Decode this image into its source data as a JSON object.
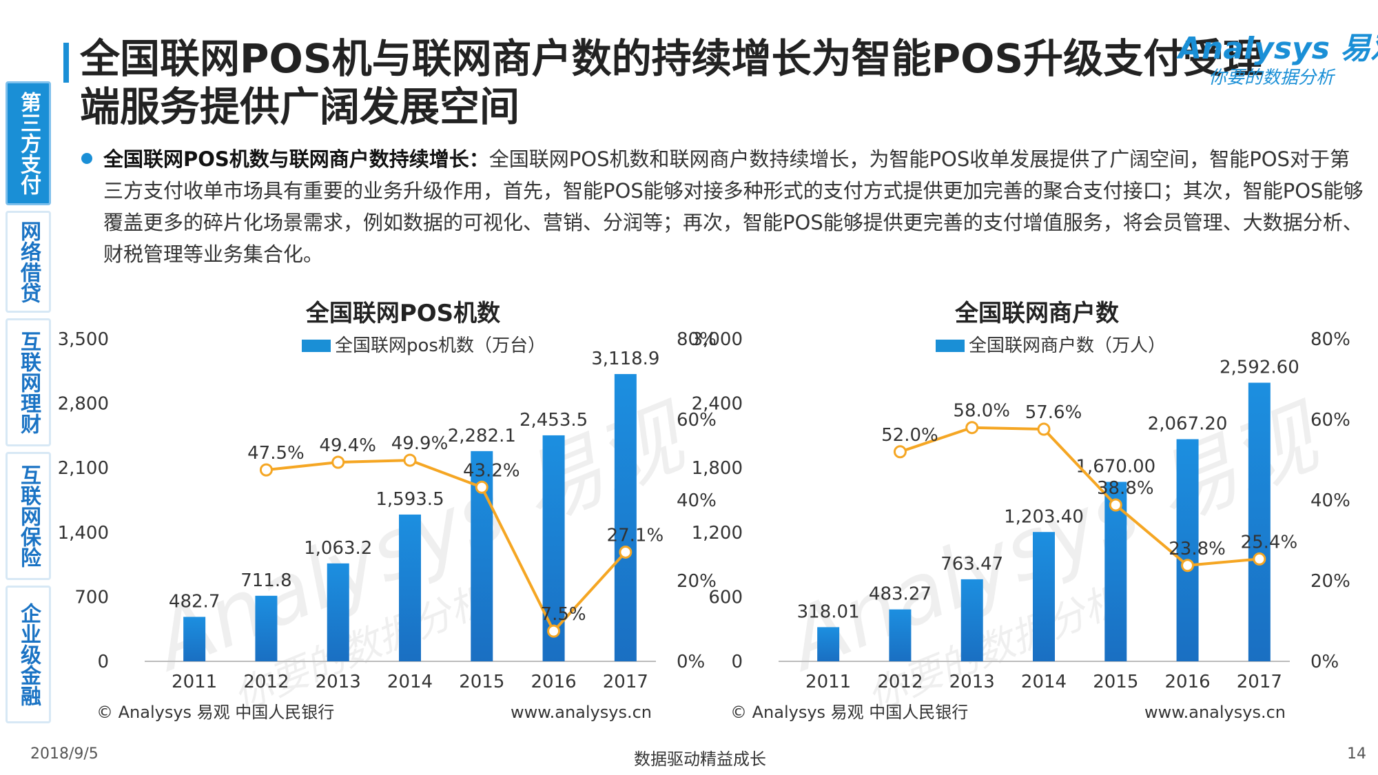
{
  "title": "全国联网POS机与联网商户数的持续增长为智能POS升级支付受理端服务提供广阔发展空间",
  "logo": {
    "brand": "Analysys 易观",
    "tagline": "你要的数据分析"
  },
  "sidebar": {
    "items": [
      {
        "label": "第三方支付",
        "active": true
      },
      {
        "label": "网络借贷",
        "active": false
      },
      {
        "label": "互联网理财",
        "active": false
      },
      {
        "label": "互联网保险",
        "active": false
      },
      {
        "label": "企业级金融",
        "active": false
      }
    ]
  },
  "description": {
    "heading": "全国联网POS机数与联网商户数持续增长：",
    "body": "全国联网POS机数和联网商户数持续增长，为智能POS收单发展提供了广阔空间，智能POS对于第三方支付收单市场具有重要的业务升级作用，首先，智能POS能够对接多种形式的支付方式提供更加完善的聚合支付接口；其次，智能POS能够覆盖更多的碎片化场景需求，例如数据的可视化、营销、分润等；再次，智能POS能够提供更完善的支付增值服务，将会员管理、大数据分析、财税管理等业务集合化。"
  },
  "chart_data": [
    {
      "type": "bar",
      "title": "全国联网POS机数",
      "categories": [
        "2011",
        "2012",
        "2013",
        "2014",
        "2015",
        "2016",
        "2017"
      ],
      "series": [
        {
          "name": "全国联网pos机数（万台）",
          "axis": "left",
          "values": [
            482.7,
            711.8,
            1063.2,
            1593.5,
            2282.1,
            2453.5,
            3118.9
          ],
          "labels": [
            "482.7",
            "711.8",
            "1,063.2",
            "1,593.5",
            "2,282.1",
            "2,453.5",
            "3,118.9"
          ],
          "color": "#1a8fd6"
        },
        {
          "axis": "right",
          "type": "line",
          "values": [
            null,
            47.5,
            49.4,
            49.9,
            43.2,
            7.5,
            27.1
          ],
          "labels": [
            "",
            "47.5%",
            "49.4%",
            "49.9%",
            "43.2%",
            "7.5%",
            "27.1%"
          ],
          "color": "#f5a623"
        }
      ],
      "ylim": [
        0,
        3500
      ],
      "yticks": [
        "0",
        "700",
        "1,400",
        "2,100",
        "2,800",
        "3,500"
      ],
      "ylim_right": [
        0,
        80
      ],
      "yticks_right": [
        "0%",
        "20%",
        "40%",
        "60%",
        "80%"
      ],
      "source": "© Analysys 易观 中国人民银行",
      "website": "www.analysys.cn",
      "watermark": "Analysys 易观",
      "watermark_sub": "你要的数据分析"
    },
    {
      "type": "bar",
      "title": "全国联网商户数",
      "categories": [
        "2011",
        "2012",
        "2013",
        "2014",
        "2015",
        "2016",
        "2017"
      ],
      "series": [
        {
          "name": "全国联网商户数（万人）",
          "axis": "left",
          "values": [
            318.01,
            483.27,
            763.47,
            1203.4,
            1670.0,
            2067.2,
            2592.6
          ],
          "labels": [
            "318.01",
            "483.27",
            "763.47",
            "1,203.40",
            "1,670.00",
            "2,067.20",
            "2,592.60"
          ],
          "color": "#1a8fd6"
        },
        {
          "axis": "right",
          "type": "line",
          "values": [
            null,
            52.0,
            58.0,
            57.6,
            38.8,
            23.8,
            25.4
          ],
          "labels": [
            "",
            "52.0%",
            "58.0%",
            "57.6%",
            "38.8%",
            "23.8%",
            "25.4%"
          ],
          "color": "#f5a623"
        }
      ],
      "ylim": [
        0,
        3000
      ],
      "yticks": [
        "0",
        "600",
        "1,200",
        "1,800",
        "2,400",
        "3,000"
      ],
      "ylim_right": [
        0,
        80
      ],
      "yticks_right": [
        "0%",
        "20%",
        "40%",
        "60%",
        "80%"
      ],
      "source": "© Analysys 易观 中国人民银行",
      "website": "www.analysys.cn",
      "watermark": "Analysys 易观",
      "watermark_sub": "你要的数据分析"
    }
  ],
  "footer": {
    "date": "2018/9/5",
    "center": "数据驱动精益成长",
    "page": "14"
  }
}
